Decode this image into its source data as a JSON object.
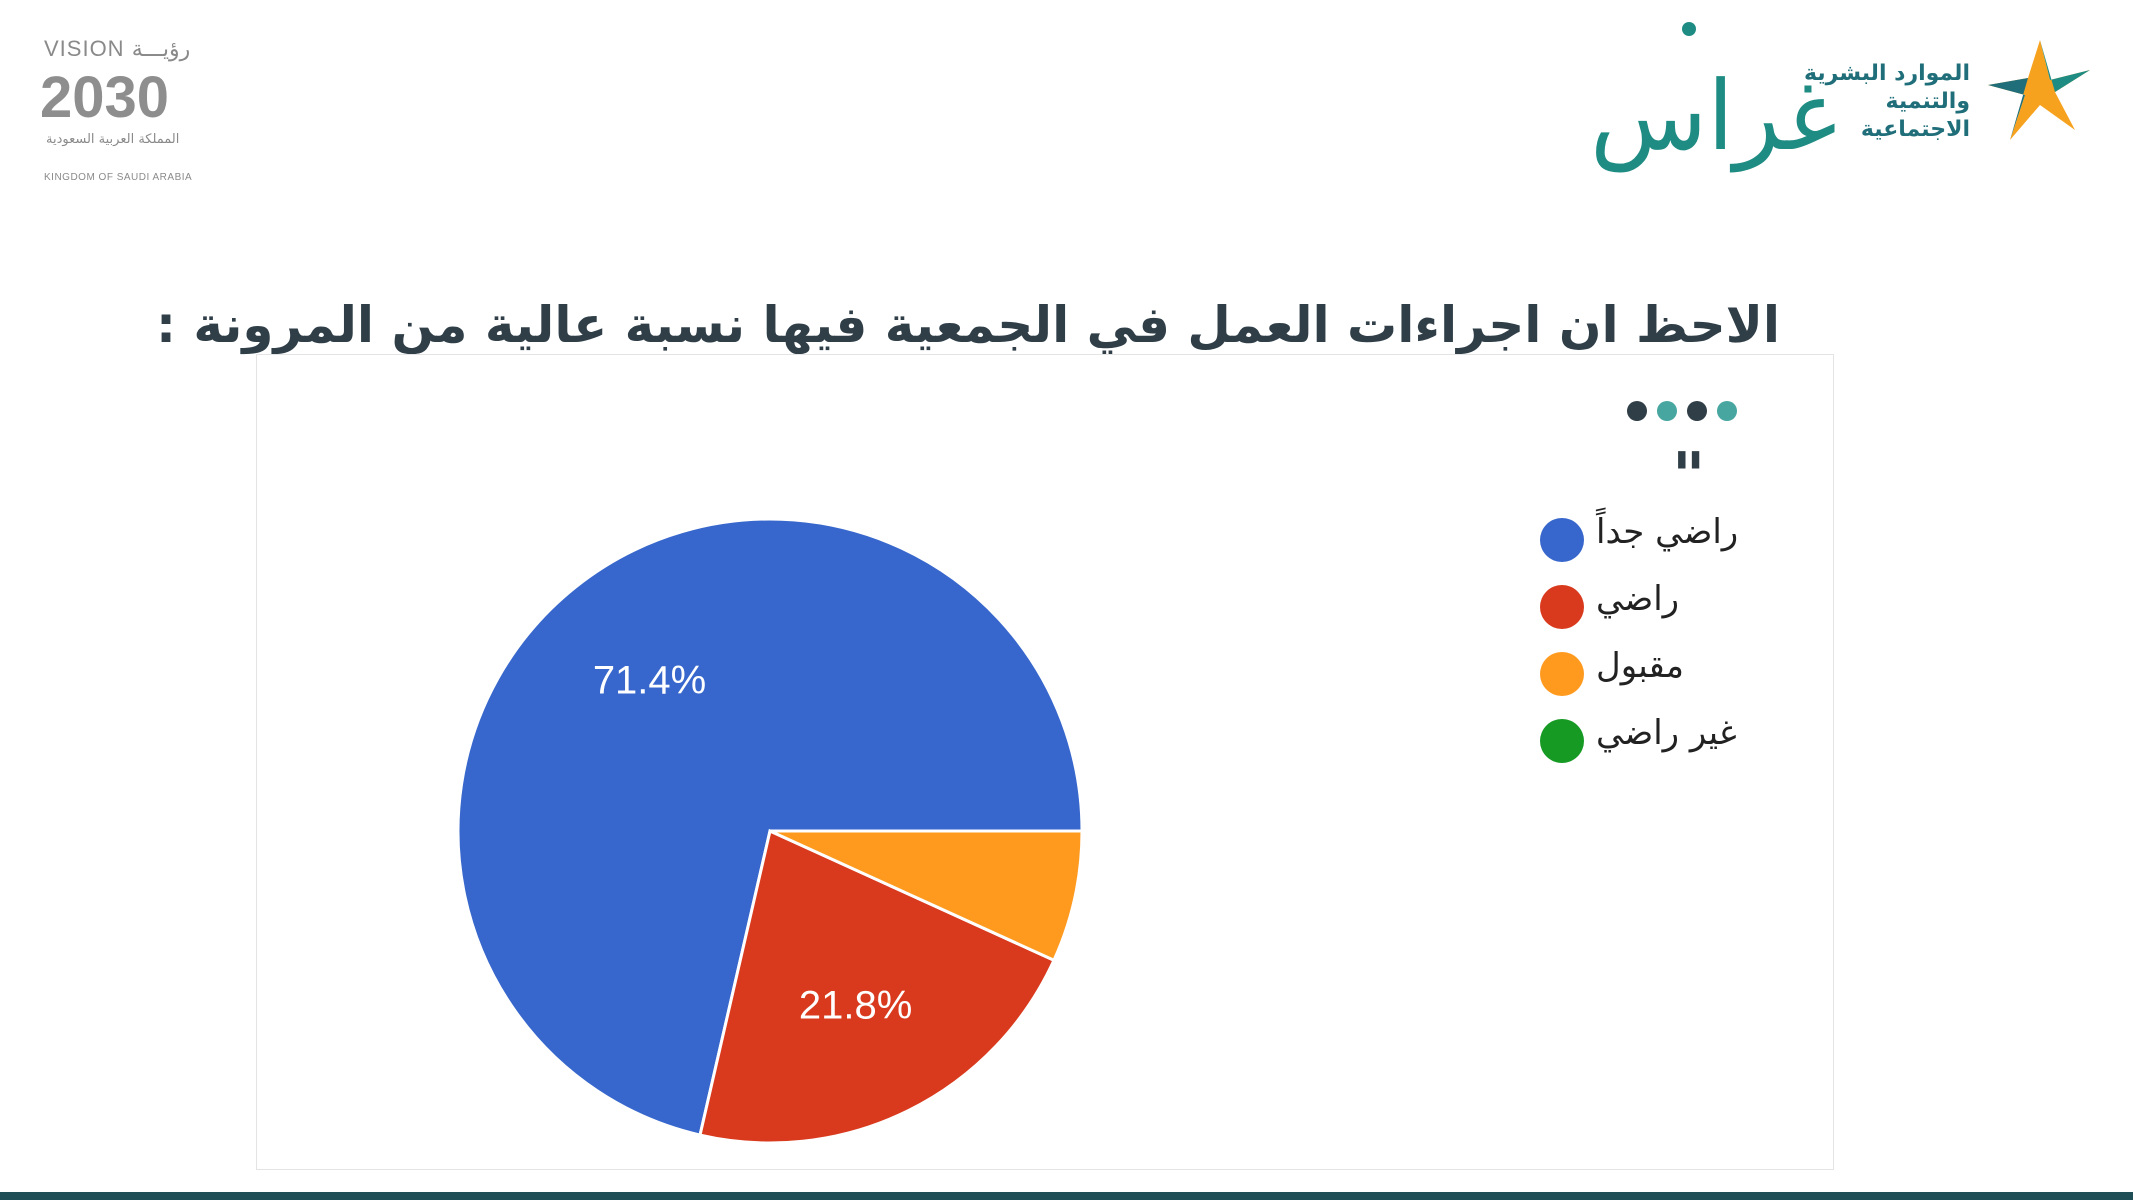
{
  "header": {
    "vision_logo": {
      "top_line": "VISION رؤيـــة",
      "year": "2030",
      "arabic_line": "المملكة العربية السعودية",
      "english_line": "KINGDOM OF SAUDI ARABIA"
    },
    "ghiras_logo": {
      "text": "غراس"
    },
    "ministry_logo": {
      "line1": "الموارد البشرية",
      "line2": "والتنمية الاجتماعية"
    }
  },
  "title": "الاحظ ان اجراءات العمل في الجمعية فيها نسبة عالية من المرونة :",
  "decor": {
    "dot_colors": [
      "#2f3e47",
      "#47a6a0",
      "#2f3e47",
      "#47a6a0"
    ],
    "quote_mark": "\""
  },
  "chart_data": {
    "type": "pie",
    "categories": [
      "راضي جداً",
      "راضي",
      "مقبول",
      "غير راضي"
    ],
    "values": [
      71.4,
      21.8,
      6.8,
      0
    ],
    "colors": [
      "#3767cc",
      "#d93a1d",
      "#ff9a1f",
      "#169a24"
    ],
    "data_labels": [
      "71.4%",
      "21.8%",
      "",
      ""
    ],
    "legend_position": "right",
    "start_angle": "east",
    "direction": "counterclockwise"
  }
}
